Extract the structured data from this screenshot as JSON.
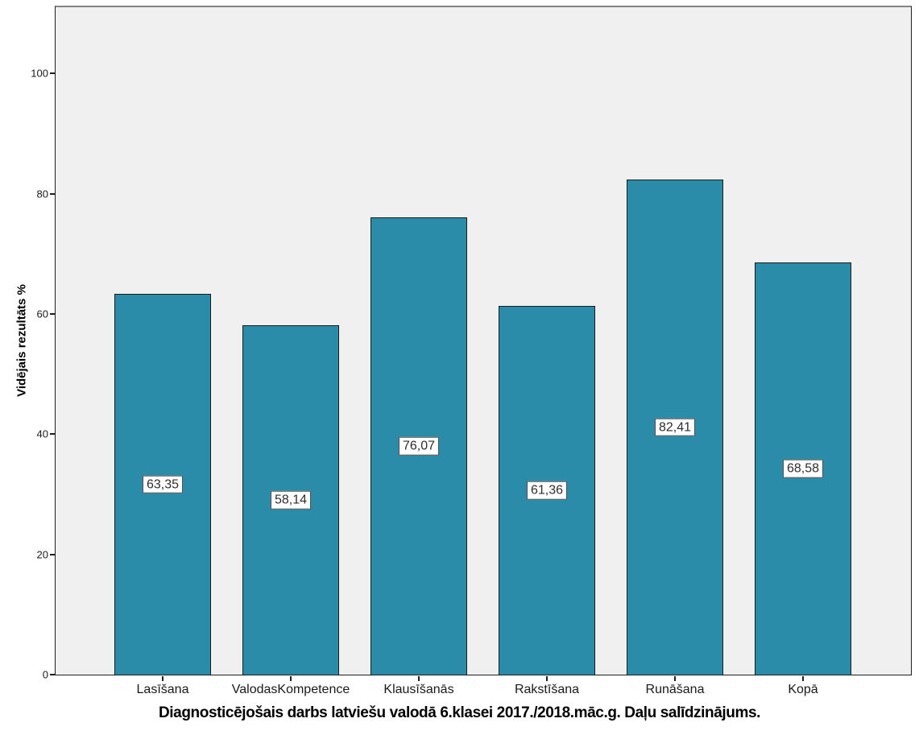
{
  "chart_data": {
    "type": "bar",
    "title": "Diagnosticējošais darbs latviešu valodā 6.klasei 2017./2018.māc.g. Daļu salīdzinājums.",
    "ylabel": "Vidējais rezultāts %",
    "xlabel": "",
    "categories": [
      "Lasīšana",
      "ValodasKompetence",
      "Klausīšanās",
      "Rakstīšana",
      "Runāšana",
      "Kopā"
    ],
    "values": [
      63.35,
      58.14,
      76.07,
      61.36,
      82.41,
      68.58
    ],
    "value_labels": [
      "63,35",
      "58,14",
      "76,07",
      "61,36",
      "82,41",
      "68,58"
    ],
    "yticks": [
      0,
      20,
      40,
      60,
      80,
      100
    ],
    "ylim": [
      0,
      111
    ],
    "grid": false,
    "legend": false,
    "bar_value_label_position": "middle",
    "colors": {
      "bar_fill": "#2b8caa",
      "bar_border": "#1c1c1c",
      "plot_background": "#f0f0f0",
      "page_background": "#ffffff",
      "axis": "#1f1f1f",
      "label_box_background": "#ffffff",
      "label_box_border": "#4d4d4d",
      "text": "#1a1a1a"
    }
  }
}
